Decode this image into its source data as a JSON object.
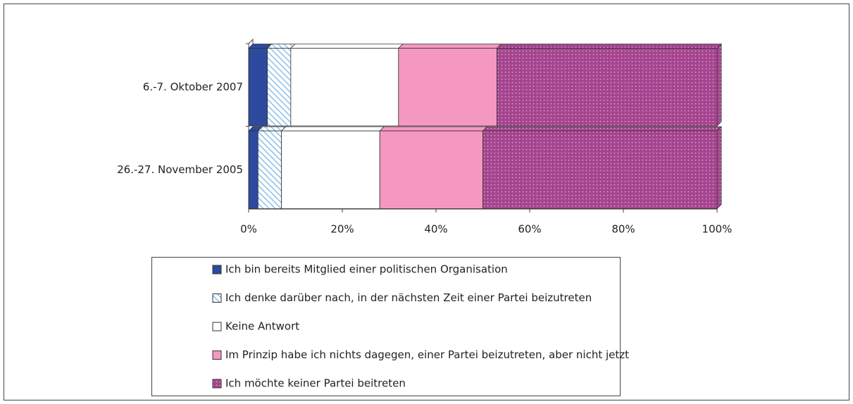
{
  "chart_data": {
    "type": "stacked_barh",
    "categories": [
      "6.-7. Oktober 2007",
      "26.-27. November 2005"
    ],
    "series": [
      {
        "name": "Ich bin bereits Mitglied einer politischen Organisation",
        "color": "#2e4a9e",
        "values": [
          4,
          2
        ]
      },
      {
        "name": "Ich denke darüber nach, in der nächsten Zeit einer Partei beizutreten",
        "color": "#8cbfe8",
        "pattern": "hatch",
        "values": [
          5,
          5
        ]
      },
      {
        "name": "Keine Antwort",
        "color": "#ffffff",
        "values": [
          23,
          21
        ]
      },
      {
        "name": "Im Prinzip habe ich nichts dagegen, einer Partei beizutreten, aber nicht jetzt",
        "color": "#f598c0",
        "values": [
          21,
          22
        ]
      },
      {
        "name": "Ich möchte keiner Partei beitreten",
        "color": "#a6458f",
        "pattern": "dots",
        "values": [
          47,
          50
        ]
      }
    ],
    "xlim": [
      0,
      100
    ],
    "xticks": [
      {
        "value": 0,
        "label": "0%"
      },
      {
        "value": 20,
        "label": "20%"
      },
      {
        "value": 40,
        "label": "40%"
      },
      {
        "value": 60,
        "label": "60%"
      },
      {
        "value": 80,
        "label": "80%"
      },
      {
        "value": 100,
        "label": "100%"
      }
    ]
  }
}
